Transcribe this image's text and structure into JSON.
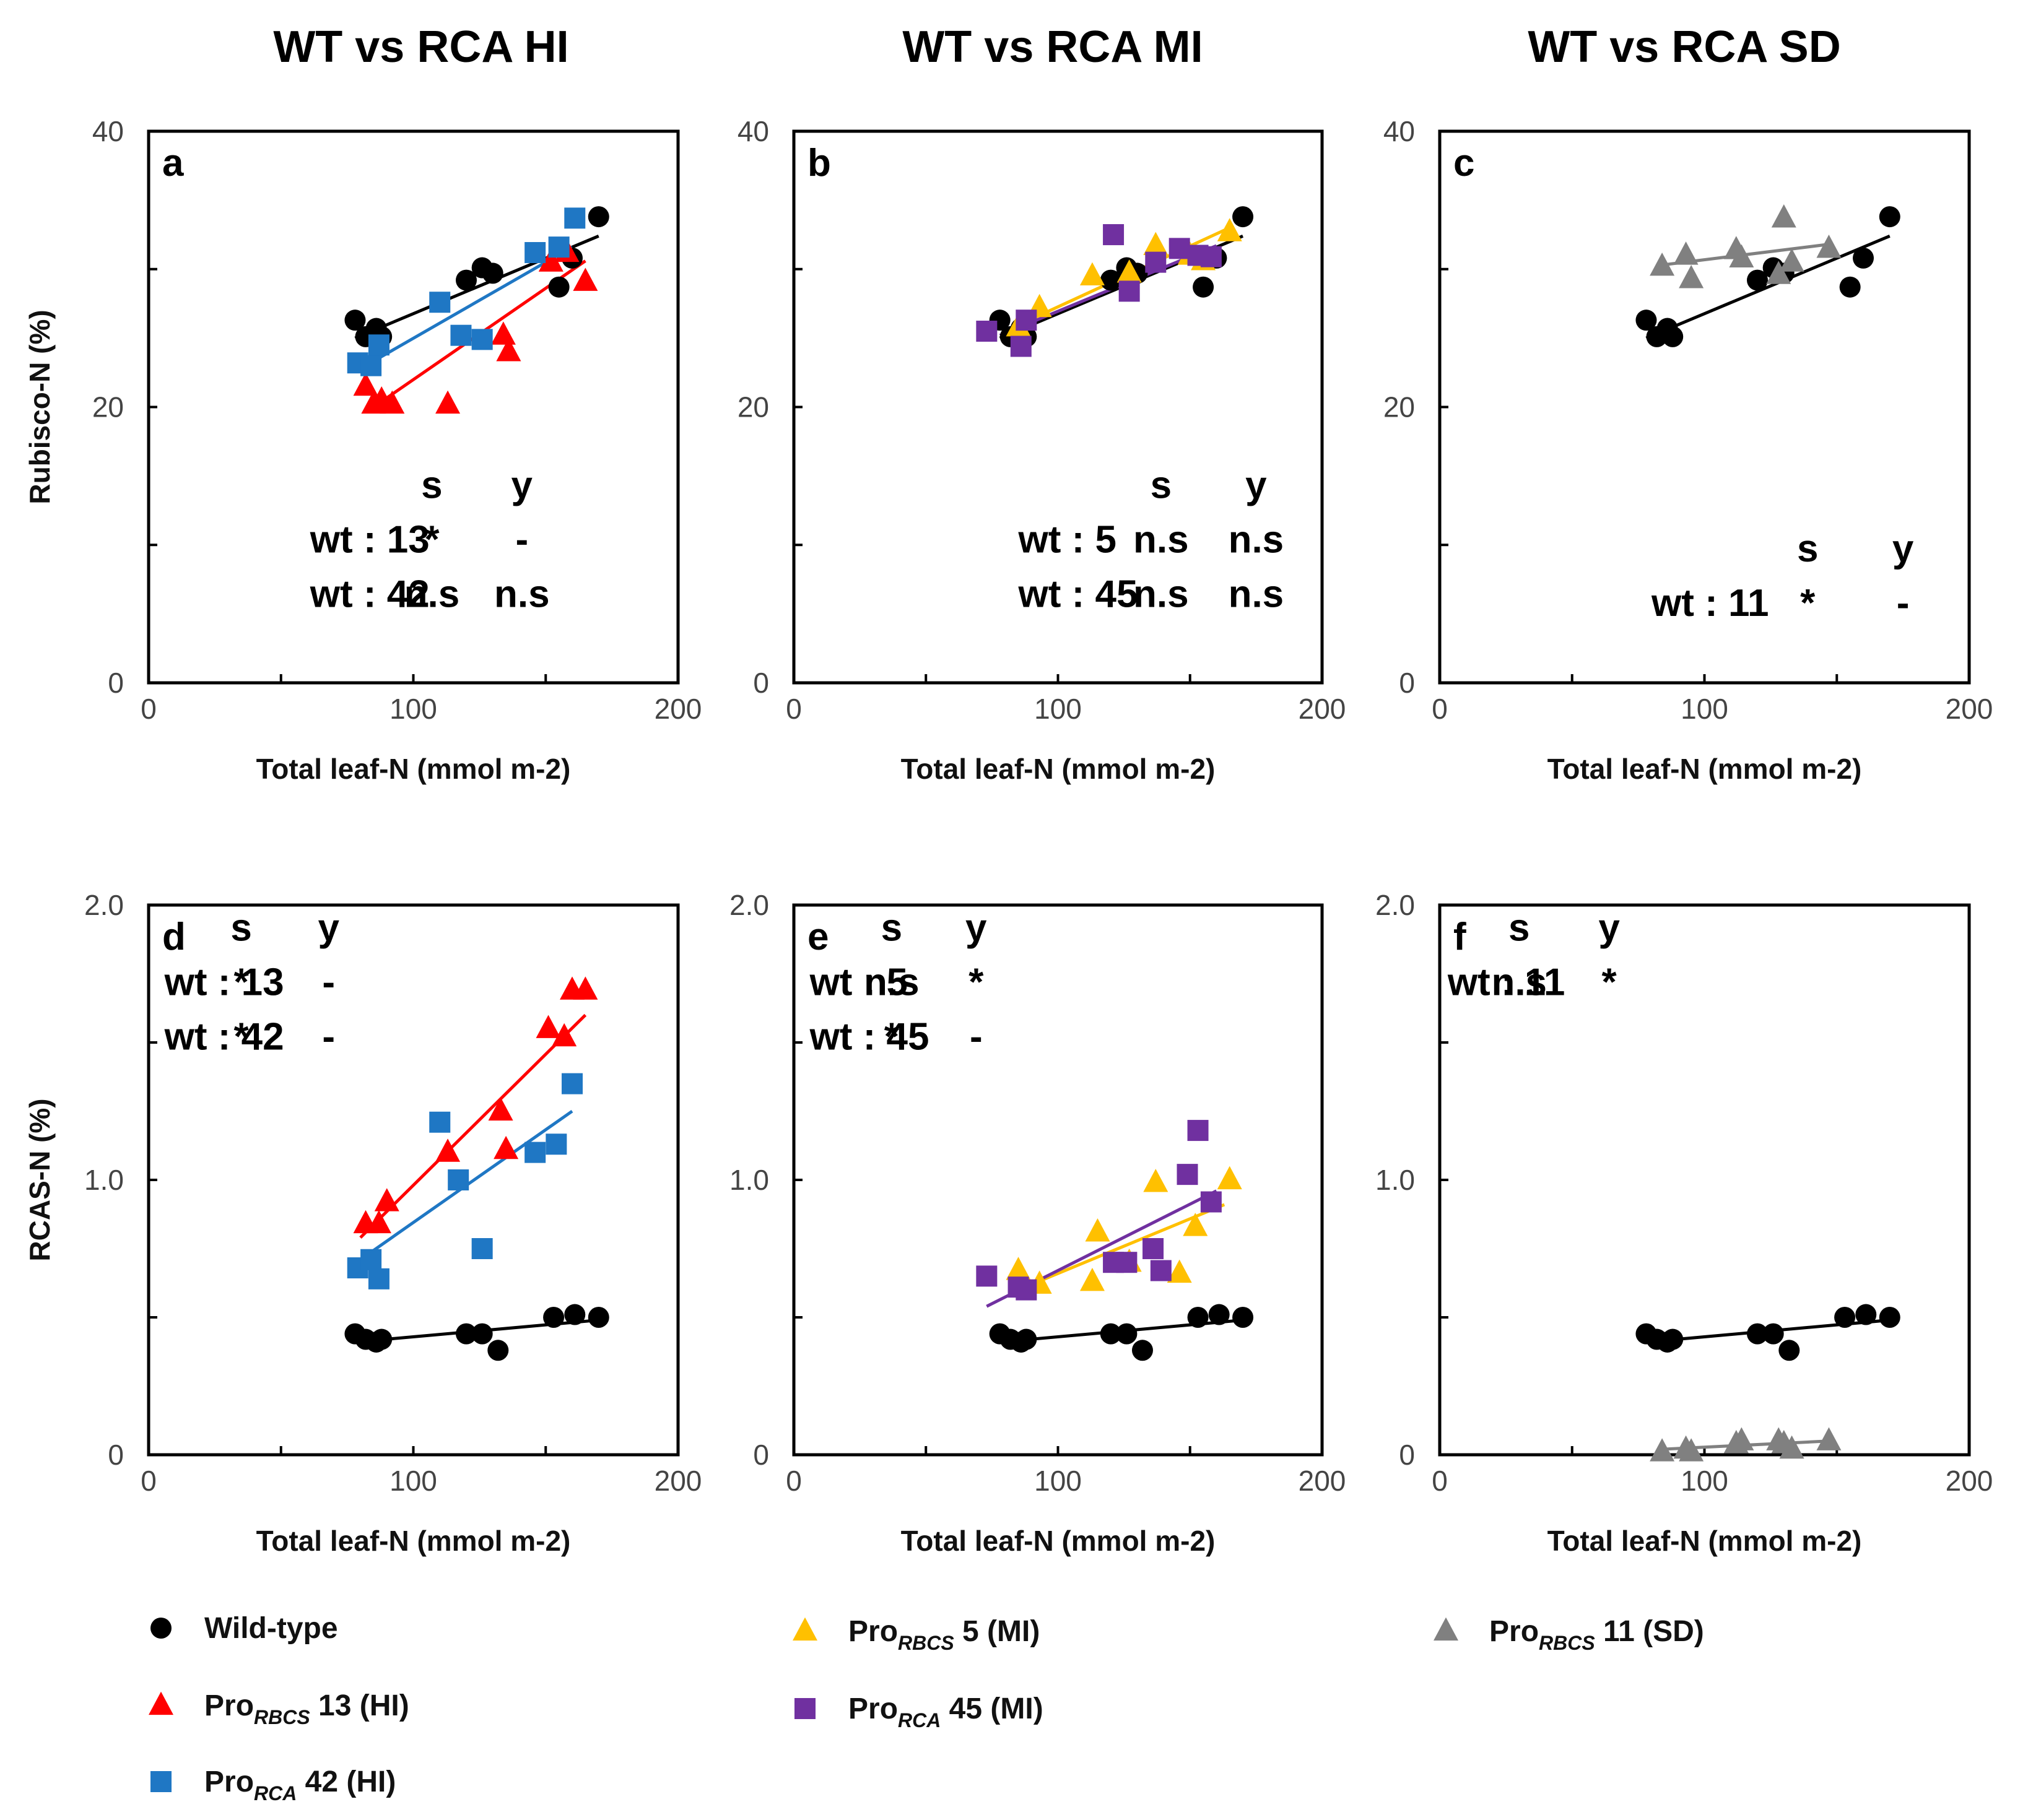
{
  "column_titles": [
    "WT vs RCA HI",
    "WT vs RCA MI",
    "WT vs RCA SD"
  ],
  "colors": {
    "wt": "#000000",
    "rbcs13": "#ff0000",
    "rca42": "#1f77c4",
    "rbcs5": "#ffc000",
    "rca45": "#7030a0",
    "rbcs11": "#808080"
  },
  "stat_headers": {
    "slope": "s",
    "intercept": "y"
  },
  "legend": [
    {
      "key": "wt",
      "marker": "circle",
      "prefix": "Wild-type",
      "sub": "",
      "suffix": ""
    },
    {
      "key": "rbcs13",
      "marker": "triangle",
      "prefix": "Pro",
      "sub": "RBCS",
      "suffix": " 13 (HI)"
    },
    {
      "key": "rca42",
      "marker": "square",
      "prefix": "Pro",
      "sub": "RCA",
      "suffix": " 42 (HI)"
    },
    {
      "key": "rbcs5",
      "marker": "triangle",
      "prefix": "Pro",
      "sub": "RBCS",
      "suffix": " 5 (MI)"
    },
    {
      "key": "rca45",
      "marker": "square",
      "prefix": "Pro",
      "sub": "RCA",
      "suffix": " 45 (MI)"
    },
    {
      "key": "rbcs11",
      "marker": "triangle",
      "prefix": "Pro",
      "sub": "RBCS",
      "suffix": " 11 (SD)"
    }
  ],
  "chart_data": [
    {
      "panel": "a",
      "type": "scatter",
      "xlabel": "Total leaf-N (mmol m-2)",
      "ylabel": "Rubisco-N (%)",
      "xlim": [
        0,
        200
      ],
      "ylim": [
        0,
        40
      ],
      "xticks": [
        "0",
        "100",
        "200"
      ],
      "yticks": [
        "0",
        "20",
        "40"
      ],
      "series": [
        {
          "name": "Wild-type",
          "key": "wt",
          "marker": "circle",
          "x": [
            78,
            82,
            86,
            88,
            120,
            126,
            130,
            155,
            160,
            170
          ],
          "y": [
            26.3,
            25.1,
            25.7,
            25.1,
            29.2,
            30.1,
            29.7,
            28.7,
            30.8,
            33.8
          ],
          "fit": [
            [
              78,
              25.0
            ],
            [
              170,
              32.4
            ]
          ]
        },
        {
          "name": "ProRBCS 13 (HI)",
          "key": "rbcs13",
          "marker": "triangle",
          "x": [
            82,
            85,
            88,
            92,
            113,
            134,
            136,
            152,
            158,
            165
          ],
          "y": [
            21.5,
            20.2,
            20.5,
            20.2,
            20.2,
            25.2,
            24.0,
            30.5,
            31.2,
            29.1
          ],
          "fit": [
            [
              85,
              20.0
            ],
            [
              165,
              30.6
            ]
          ]
        },
        {
          "name": "ProRCA 42 (HI)",
          "key": "rca42",
          "marker": "square",
          "x": [
            79,
            84,
            87,
            110,
            118,
            126,
            146,
            155,
            161
          ],
          "y": [
            23.2,
            23.0,
            24.5,
            27.6,
            25.2,
            24.9,
            31.2,
            31.6,
            33.7
          ],
          "fit": [
            [
              82,
              23.0
            ],
            [
              160,
              31.6
            ]
          ]
        }
      ],
      "stats": {
        "headers_y": 13.4,
        "rows": [
          {
            "label": "wt : 13",
            "s": "*",
            "y": "-"
          },
          {
            "label": "wt : 42",
            "s": "n.s",
            "y": "n.s"
          }
        ]
      }
    },
    {
      "panel": "b",
      "type": "scatter",
      "xlabel": "Total leaf-N (mmol m-2)",
      "ylabel": "",
      "xlim": [
        0,
        200
      ],
      "ylim": [
        0,
        40
      ],
      "xticks": [
        "0",
        "100",
        "200"
      ],
      "yticks": [
        "0",
        "20",
        "40"
      ],
      "series": [
        {
          "name": "Wild-type",
          "key": "wt",
          "marker": "circle",
          "x": [
            78,
            82,
            86,
            88,
            120,
            126,
            130,
            155,
            160,
            170
          ],
          "y": [
            26.3,
            25.1,
            25.7,
            25.1,
            29.2,
            30.1,
            29.7,
            28.7,
            30.8,
            33.8
          ],
          "fit": [
            [
              78,
              25.0
            ],
            [
              170,
              32.4
            ]
          ]
        },
        {
          "name": "ProRBCS 5 (MI)",
          "key": "rbcs5",
          "marker": "triangle",
          "x": [
            85,
            93,
            113,
            127,
            137,
            150,
            155,
            165
          ],
          "y": [
            25.8,
            27.2,
            29.5,
            29.7,
            31.7,
            31.0,
            30.6,
            32.7
          ],
          "fit": [
            [
              80,
              25.5
            ],
            [
              165,
              33.0
            ]
          ]
        },
        {
          "name": "ProRCA 45 (MI)",
          "key": "rca45",
          "marker": "square",
          "x": [
            73,
            86,
            88,
            121,
            127,
            137,
            146,
            153,
            158
          ],
          "y": [
            25.5,
            24.4,
            26.3,
            32.5,
            28.4,
            30.5,
            31.5,
            31.0,
            30.9
          ],
          "fit": [
            [
              78,
              25.2
            ],
            [
              160,
              31.7
            ]
          ]
        }
      ],
      "stats": {
        "headers_y": 13.4,
        "rows": [
          {
            "label": "wt : 5",
            "s": "n.s",
            "y": "n.s"
          },
          {
            "label": "wt : 45",
            "s": "n.s",
            "y": "n.s"
          }
        ]
      }
    },
    {
      "panel": "c",
      "type": "scatter",
      "xlabel": "Total leaf-N (mmol m-2)",
      "ylabel": "",
      "xlim": [
        0,
        200
      ],
      "ylim": [
        0,
        40
      ],
      "xticks": [
        "0",
        "100",
        "200"
      ],
      "yticks": [
        "0",
        "20",
        "40"
      ],
      "series": [
        {
          "name": "Wild-type",
          "key": "wt",
          "marker": "circle",
          "x": [
            78,
            82,
            86,
            88,
            120,
            126,
            130,
            155,
            160,
            170
          ],
          "y": [
            26.3,
            25.1,
            25.7,
            25.1,
            29.2,
            30.1,
            29.7,
            28.7,
            30.8,
            33.8
          ],
          "fit": [
            [
              78,
              25.0
            ],
            [
              170,
              32.4
            ]
          ]
        },
        {
          "name": "ProRBCS 11 (SD)",
          "key": "rbcs11",
          "marker": "triangle",
          "x": [
            84,
            93,
            95,
            112,
            114,
            128,
            130,
            133,
            147
          ],
          "y": [
            30.2,
            31.0,
            29.3,
            31.4,
            30.8,
            29.6,
            33.7,
            30.5,
            31.5
          ],
          "fit": [
            [
              84,
              30.3
            ],
            [
              147,
              31.8
            ]
          ]
        }
      ],
      "stats": {
        "headers_y": 8.8,
        "rows": [
          {
            "label": "wt : 11",
            "s": "*",
            "y": "-"
          }
        ]
      }
    },
    {
      "panel": "d",
      "type": "scatter",
      "xlabel": "Total leaf-N (mmol m-2)",
      "ylabel": "RCAS-N (%)",
      "xlim": [
        0,
        200
      ],
      "ylim": [
        0,
        2.0
      ],
      "xticks": [
        "0",
        "100",
        "200"
      ],
      "yticks": [
        "0",
        "1.0",
        "2.0"
      ],
      "series": [
        {
          "name": "Wild-type",
          "key": "wt",
          "marker": "circle",
          "x": [
            78,
            82,
            86,
            88,
            120,
            126,
            132,
            153,
            161,
            170
          ],
          "y": [
            0.44,
            0.42,
            0.41,
            0.42,
            0.44,
            0.44,
            0.38,
            0.5,
            0.51,
            0.5
          ],
          "fit": [
            [
              78,
              0.41
            ],
            [
              170,
              0.49
            ]
          ]
        },
        {
          "name": "ProRBCS 13 (HI)",
          "key": "rbcs13",
          "marker": "triangle",
          "x": [
            82,
            87,
            90,
            113,
            133,
            135,
            151,
            157,
            160,
            165
          ],
          "y": [
            0.84,
            0.84,
            0.92,
            1.1,
            1.25,
            1.11,
            1.55,
            1.52,
            1.69,
            1.69
          ],
          "fit": [
            [
              80,
              0.79
            ],
            [
              165,
              1.6
            ]
          ]
        },
        {
          "name": "ProRCA 42 (HI)",
          "key": "rca42",
          "marker": "square",
          "x": [
            79,
            84,
            87,
            110,
            117,
            126,
            146,
            154,
            160
          ],
          "y": [
            0.68,
            0.71,
            0.64,
            1.21,
            1.0,
            0.75,
            1.1,
            1.13,
            1.35
          ],
          "fit": [
            [
              80,
              0.71
            ],
            [
              160,
              1.25
            ]
          ]
        }
      ],
      "stats": {
        "headers_y": 1.87,
        "rows": [
          {
            "label": "wt : 13",
            "s": "*",
            "y": "-"
          },
          {
            "label": "wt : 42",
            "s": "*",
            "y": "-"
          }
        ]
      }
    },
    {
      "panel": "e",
      "type": "scatter",
      "xlabel": "Total leaf-N (mmol m-2)",
      "ylabel": "",
      "xlim": [
        0,
        200
      ],
      "ylim": [
        0,
        2.0
      ],
      "xticks": [
        "0",
        "100",
        "200"
      ],
      "yticks": [
        "0",
        "1.0",
        "2.0"
      ],
      "series": [
        {
          "name": "Wild-type",
          "key": "wt",
          "marker": "circle",
          "x": [
            78,
            82,
            86,
            88,
            120,
            126,
            132,
            153,
            161,
            170
          ],
          "y": [
            0.44,
            0.42,
            0.41,
            0.42,
            0.44,
            0.44,
            0.38,
            0.5,
            0.51,
            0.5
          ],
          "fit": [
            [
              78,
              0.41
            ],
            [
              170,
              0.49
            ]
          ]
        },
        {
          "name": "ProRBCS 5 (MI)",
          "key": "rbcs5",
          "marker": "triangle",
          "x": [
            85,
            93,
            113,
            115,
            127,
            137,
            146,
            152,
            165
          ],
          "y": [
            0.67,
            0.62,
            0.63,
            0.81,
            0.7,
            0.99,
            0.66,
            0.83,
            1.0
          ],
          "fit": [
            [
              85,
              0.6
            ],
            [
              163,
              0.91
            ]
          ]
        },
        {
          "name": "ProRCA 45 (MI)",
          "key": "rca45",
          "marker": "square",
          "x": [
            73,
            85,
            88,
            121,
            126,
            136,
            139,
            149,
            153,
            158
          ],
          "y": [
            0.65,
            0.61,
            0.6,
            0.7,
            0.7,
            0.75,
            0.67,
            1.02,
            1.18,
            0.92
          ],
          "fit": [
            [
              73,
              0.54
            ],
            [
              160,
              0.96
            ]
          ]
        }
      ],
      "stats": {
        "headers_y": 1.87,
        "rows": [
          {
            "label": "wt : 5",
            "s": "n.s",
            "y": "*"
          },
          {
            "label": "wt : 45",
            "s": "*",
            "y": "-"
          }
        ]
      }
    },
    {
      "panel": "f",
      "type": "scatter",
      "xlabel": "Total leaf-N (mmol m-2)",
      "ylabel": "",
      "xlim": [
        0,
        200
      ],
      "ylim": [
        0,
        2.0
      ],
      "xticks": [
        "0",
        "100",
        "200"
      ],
      "yticks": [
        "0",
        "1.0",
        "2.0"
      ],
      "series": [
        {
          "name": "Wild-type",
          "key": "wt",
          "marker": "circle",
          "x": [
            78,
            82,
            86,
            88,
            120,
            126,
            132,
            153,
            161,
            170
          ],
          "y": [
            0.44,
            0.42,
            0.41,
            0.42,
            0.44,
            0.44,
            0.38,
            0.5,
            0.51,
            0.5
          ],
          "fit": [
            [
              78,
              0.41
            ],
            [
              170,
              0.49
            ]
          ]
        },
        {
          "name": "ProRBCS 11 (SD)",
          "key": "rbcs11",
          "marker": "triangle",
          "x": [
            84,
            93,
            95,
            112,
            114,
            128,
            130,
            133,
            147
          ],
          "y": [
            0.01,
            0.02,
            0.01,
            0.04,
            0.05,
            0.05,
            0.04,
            0.02,
            0.05
          ],
          "fit": [
            [
              84,
              0.02
            ],
            [
              147,
              0.05
            ]
          ]
        }
      ],
      "stats": {
        "headers_y": 1.87,
        "rows": [
          {
            "label": "wt : 11",
            "s": "n.s",
            "y": "*"
          }
        ]
      }
    }
  ]
}
